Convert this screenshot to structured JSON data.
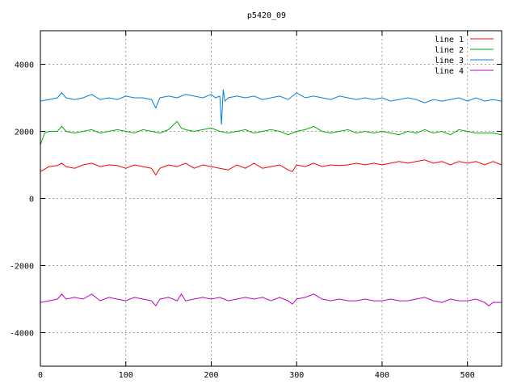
{
  "chart_data": {
    "type": "line",
    "title": "p5420_09",
    "xlabel": "",
    "ylabel": "",
    "xlim": [
      0,
      540
    ],
    "ylim": [
      -5000,
      5000
    ],
    "xticks": [
      0,
      100,
      200,
      300,
      400,
      500
    ],
    "yticks": [
      -4000,
      -2000,
      0,
      2000,
      4000
    ],
    "grid": true,
    "legend_position": "top-right",
    "series": [
      {
        "name": "line 1",
        "color": "#ff0000",
        "x": [
          0,
          10,
          20,
          25,
          30,
          40,
          50,
          60,
          70,
          80,
          90,
          100,
          110,
          120,
          130,
          135,
          140,
          150,
          160,
          170,
          180,
          190,
          200,
          210,
          220,
          230,
          240,
          250,
          260,
          270,
          280,
          290,
          295,
          300,
          310,
          320,
          330,
          340,
          350,
          360,
          370,
          380,
          390,
          400,
          410,
          420,
          430,
          440,
          450,
          460,
          470,
          480,
          490,
          500,
          510,
          520,
          530,
          540
        ],
        "y": [
          800,
          950,
          980,
          1050,
          950,
          900,
          1000,
          1050,
          950,
          1000,
          980,
          900,
          1000,
          950,
          900,
          700,
          900,
          1000,
          950,
          1050,
          900,
          1000,
          950,
          900,
          850,
          1000,
          900,
          1050,
          900,
          950,
          1000,
          850,
          800,
          1000,
          950,
          1050,
          950,
          1000,
          980,
          1000,
          1050,
          1000,
          1050,
          1000,
          1050,
          1100,
          1050,
          1100,
          1150,
          1050,
          1100,
          1000,
          1100,
          1050,
          1100,
          1000,
          1100,
          1000
        ]
      },
      {
        "name": "line 2",
        "color": "#00b000",
        "x": [
          0,
          5,
          10,
          20,
          25,
          30,
          40,
          50,
          60,
          70,
          80,
          90,
          100,
          110,
          120,
          130,
          140,
          150,
          160,
          165,
          170,
          180,
          190,
          200,
          210,
          220,
          230,
          240,
          250,
          260,
          270,
          280,
          290,
          300,
          310,
          320,
          330,
          340,
          350,
          360,
          370,
          380,
          390,
          400,
          410,
          420,
          430,
          440,
          450,
          460,
          470,
          480,
          490,
          500,
          510,
          520,
          530,
          540
        ],
        "y": [
          1600,
          1950,
          2000,
          2000,
          2150,
          2000,
          1950,
          2000,
          2050,
          1950,
          2000,
          2050,
          2000,
          1950,
          2050,
          2000,
          1950,
          2050,
          2300,
          2100,
          2050,
          2000,
          2050,
          2100,
          2000,
          1950,
          2000,
          2050,
          1950,
          2000,
          2050,
          2000,
          1900,
          2000,
          2050,
          2150,
          2000,
          1950,
          2000,
          2050,
          1950,
          2000,
          1950,
          2000,
          1950,
          1900,
          2000,
          1950,
          2050,
          1950,
          2000,
          1900,
          2050,
          2000,
          1950,
          1950,
          1950,
          1900
        ]
      },
      {
        "name": "line 3",
        "color": "#0080e0",
        "x": [
          0,
          10,
          20,
          25,
          30,
          40,
          50,
          60,
          70,
          80,
          90,
          100,
          110,
          120,
          130,
          135,
          140,
          150,
          160,
          170,
          180,
          190,
          200,
          205,
          210,
          212,
          214,
          216,
          220,
          230,
          240,
          250,
          260,
          270,
          280,
          290,
          300,
          310,
          320,
          330,
          340,
          350,
          360,
          370,
          380,
          390,
          400,
          410,
          420,
          430,
          440,
          450,
          460,
          470,
          480,
          490,
          500,
          510,
          520,
          530,
          540
        ],
        "y": [
          2900,
          2950,
          3000,
          3150,
          3000,
          2950,
          3000,
          3100,
          2950,
          3000,
          2950,
          3050,
          3000,
          3000,
          2950,
          2700,
          3000,
          3050,
          3000,
          3100,
          3050,
          3000,
          3100,
          3000,
          3050,
          2200,
          3250,
          2900,
          3000,
          3050,
          3000,
          3050,
          2950,
          3000,
          3050,
          2950,
          3150,
          3000,
          3050,
          3000,
          2950,
          3050,
          3000,
          2950,
          3000,
          2950,
          3000,
          2900,
          2950,
          3000,
          2950,
          2850,
          2950,
          2900,
          2950,
          3000,
          2900,
          3000,
          2900,
          2950,
          2900
        ]
      },
      {
        "name": "line 4",
        "color": "#c000c0",
        "x": [
          0,
          10,
          20,
          25,
          30,
          40,
          50,
          60,
          70,
          80,
          90,
          100,
          110,
          120,
          130,
          135,
          140,
          150,
          160,
          165,
          170,
          180,
          190,
          200,
          210,
          220,
          230,
          240,
          250,
          260,
          270,
          280,
          290,
          295,
          300,
          310,
          320,
          330,
          340,
          350,
          360,
          370,
          380,
          390,
          400,
          410,
          420,
          430,
          440,
          450,
          460,
          470,
          480,
          490,
          500,
          510,
          520,
          525,
          530,
          540
        ],
        "y": [
          -3100,
          -3050,
          -3000,
          -2850,
          -3000,
          -2950,
          -3000,
          -2850,
          -3050,
          -2950,
          -3000,
          -3050,
          -2950,
          -3000,
          -3050,
          -3200,
          -3000,
          -2950,
          -3050,
          -2850,
          -3050,
          -3000,
          -2950,
          -3000,
          -2950,
          -3050,
          -3000,
          -2950,
          -3000,
          -2950,
          -3050,
          -2950,
          -3050,
          -3150,
          -3000,
          -2950,
          -2850,
          -3000,
          -3050,
          -3000,
          -3050,
          -3050,
          -3000,
          -3050,
          -3050,
          -3000,
          -3050,
          -3050,
          -3000,
          -2950,
          -3050,
          -3100,
          -3000,
          -3050,
          -3050,
          -3000,
          -3100,
          -3200,
          -3100,
          -3100
        ]
      }
    ]
  }
}
